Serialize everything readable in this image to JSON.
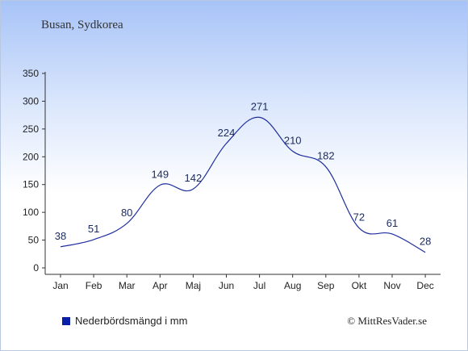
{
  "page": {
    "subtitle": "Busan, Sydkorea",
    "copyright": "© MittResVader.se"
  },
  "chart_data": {
    "type": "line",
    "title": "",
    "xlabel": "",
    "ylabel": "",
    "categories": [
      "Jan",
      "Feb",
      "Mar",
      "Apr",
      "Maj",
      "Jun",
      "Jul",
      "Aug",
      "Sep",
      "Okt",
      "Nov",
      "Dec"
    ],
    "series": [
      {
        "name": "Nederbördsmängd i mm",
        "values": [
          38,
          51,
          80,
          149,
          142,
          224,
          271,
          210,
          182,
          72,
          61,
          28
        ]
      }
    ],
    "data_labels": [
      "38",
      "51",
      "80",
      "149",
      "142",
      "224",
      "271",
      "210",
      "182",
      "72",
      "61",
      "28"
    ],
    "ylim": [
      0,
      350
    ],
    "yticks": [
      0,
      50,
      100,
      150,
      200,
      250,
      300,
      350
    ],
    "grid": false,
    "legend_position": "bottom-left",
    "colors": {
      "line": "#1f2f9c",
      "legend_swatch": "#0a1fa8",
      "axis": "#333333"
    }
  }
}
